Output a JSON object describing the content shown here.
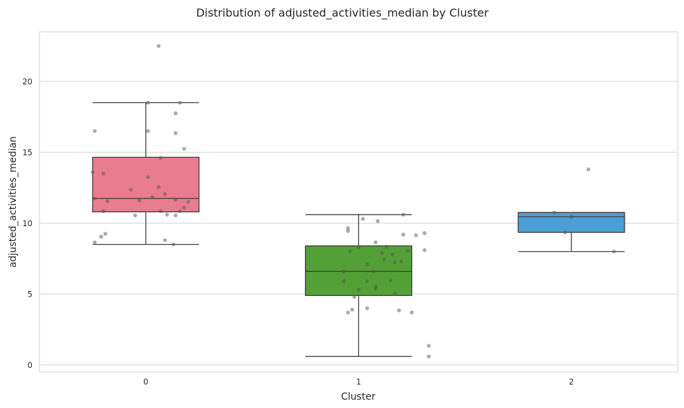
{
  "chart_data": {
    "type": "box",
    "title": "Distribution of adjusted_activities_median by Cluster",
    "xlabel": "Cluster",
    "ylabel": "adjusted_activities_median",
    "categories": [
      "0",
      "1",
      "2"
    ],
    "ylim": [
      -0.5,
      23.5
    ],
    "yticks": [
      0,
      5,
      10,
      15,
      20
    ],
    "ytick_labels": [
      "0",
      "5",
      "10",
      "15",
      "20"
    ],
    "grid": "horizontal",
    "boxes": [
      {
        "category": "0",
        "color": "#e87d8f",
        "whisker_low": 8.5,
        "q1": 10.8,
        "median": 11.75,
        "q3": 14.65,
        "whisker_high": 18.5
      },
      {
        "category": "1",
        "color": "#53a136",
        "whisker_low": 0.6,
        "q1": 4.9,
        "median": 6.6,
        "q3": 8.4,
        "whisker_high": 10.6
      },
      {
        "category": "2",
        "color": "#4b9fd6",
        "whisker_low": 8.0,
        "q1": 9.35,
        "median": 10.45,
        "q3": 10.75,
        "whisker_high": 10.75
      }
    ],
    "points": [
      [
        {
          "x": -0.24,
          "y": 8.65
        },
        {
          "x": -0.19,
          "y": 9.25
        },
        {
          "x": -0.21,
          "y": 9.05
        },
        {
          "x": -0.05,
          "y": 10.55
        },
        {
          "x": 0.1,
          "y": 10.6
        },
        {
          "x": 0.07,
          "y": 10.85
        },
        {
          "x": -0.2,
          "y": 10.85
        },
        {
          "x": 0.14,
          "y": 10.55
        },
        {
          "x": 0.16,
          "y": 10.85
        },
        {
          "x": 0.18,
          "y": 11.1
        },
        {
          "x": 0.2,
          "y": 11.5
        },
        {
          "x": -0.18,
          "y": 11.55
        },
        {
          "x": -0.03,
          "y": 11.6
        },
        {
          "x": 0.14,
          "y": 11.65
        },
        {
          "x": -0.24,
          "y": 11.75
        },
        {
          "x": 0.03,
          "y": 11.85
        },
        {
          "x": 0.09,
          "y": 12.05
        },
        {
          "x": -0.07,
          "y": 12.35
        },
        {
          "x": 0.06,
          "y": 12.55
        },
        {
          "x": 0.01,
          "y": 13.25
        },
        {
          "x": -0.25,
          "y": 13.6
        },
        {
          "x": -0.2,
          "y": 13.5
        },
        {
          "x": 0.07,
          "y": 14.6
        },
        {
          "x": 0.18,
          "y": 15.25
        },
        {
          "x": -0.24,
          "y": 16.5
        },
        {
          "x": 0.01,
          "y": 16.5
        },
        {
          "x": 0.14,
          "y": 16.35
        },
        {
          "x": 0.14,
          "y": 17.75
        },
        {
          "x": 0.01,
          "y": 18.5
        },
        {
          "x": 0.16,
          "y": 18.5
        },
        {
          "x": 0.06,
          "y": 22.5
        },
        {
          "x": 0.09,
          "y": 8.8
        },
        {
          "x": 0.13,
          "y": 8.5
        }
      ],
      [
        {
          "x": 0.95,
          "y": 3.7
        },
        {
          "x": 0.97,
          "y": 3.9
        },
        {
          "x": 1.04,
          "y": 4.0
        },
        {
          "x": 0.98,
          "y": 4.8
        },
        {
          "x": 1.0,
          "y": 5.3
        },
        {
          "x": 1.08,
          "y": 5.4
        },
        {
          "x": 1.08,
          "y": 5.55
        },
        {
          "x": 1.17,
          "y": 5.0
        },
        {
          "x": 0.93,
          "y": 5.9
        },
        {
          "x": 1.04,
          "y": 5.9
        },
        {
          "x": 1.15,
          "y": 5.95
        },
        {
          "x": 0.93,
          "y": 6.6
        },
        {
          "x": 1.07,
          "y": 6.6
        },
        {
          "x": 1.04,
          "y": 7.1
        },
        {
          "x": 1.17,
          "y": 7.25
        },
        {
          "x": 1.12,
          "y": 7.45
        },
        {
          "x": 1.2,
          "y": 7.3
        },
        {
          "x": 1.16,
          "y": 7.8
        },
        {
          "x": 1.11,
          "y": 7.9
        },
        {
          "x": 0.96,
          "y": 8.0
        },
        {
          "x": 1.23,
          "y": 8.05
        },
        {
          "x": 1.31,
          "y": 8.1
        },
        {
          "x": 1.0,
          "y": 8.3
        },
        {
          "x": 1.13,
          "y": 8.35
        },
        {
          "x": 1.08,
          "y": 8.65
        },
        {
          "x": 1.27,
          "y": 9.15
        },
        {
          "x": 1.21,
          "y": 9.2
        },
        {
          "x": 1.31,
          "y": 9.3
        },
        {
          "x": 0.95,
          "y": 9.45
        },
        {
          "x": 0.95,
          "y": 9.65
        },
        {
          "x": 1.09,
          "y": 10.15
        },
        {
          "x": 1.02,
          "y": 10.3
        },
        {
          "x": 1.19,
          "y": 3.85
        },
        {
          "x": 1.25,
          "y": 3.7
        },
        {
          "x": 1.33,
          "y": 1.35
        },
        {
          "x": 1.33,
          "y": 0.6
        },
        {
          "x": 1.21,
          "y": 10.6
        }
      ],
      [
        {
          "x": 1.92,
          "y": 10.75
        },
        {
          "x": 1.97,
          "y": 9.35
        },
        {
          "x": 2.0,
          "y": 10.45
        },
        {
          "x": 2.08,
          "y": 13.8
        },
        {
          "x": 2.2,
          "y": 8.0
        }
      ]
    ]
  }
}
